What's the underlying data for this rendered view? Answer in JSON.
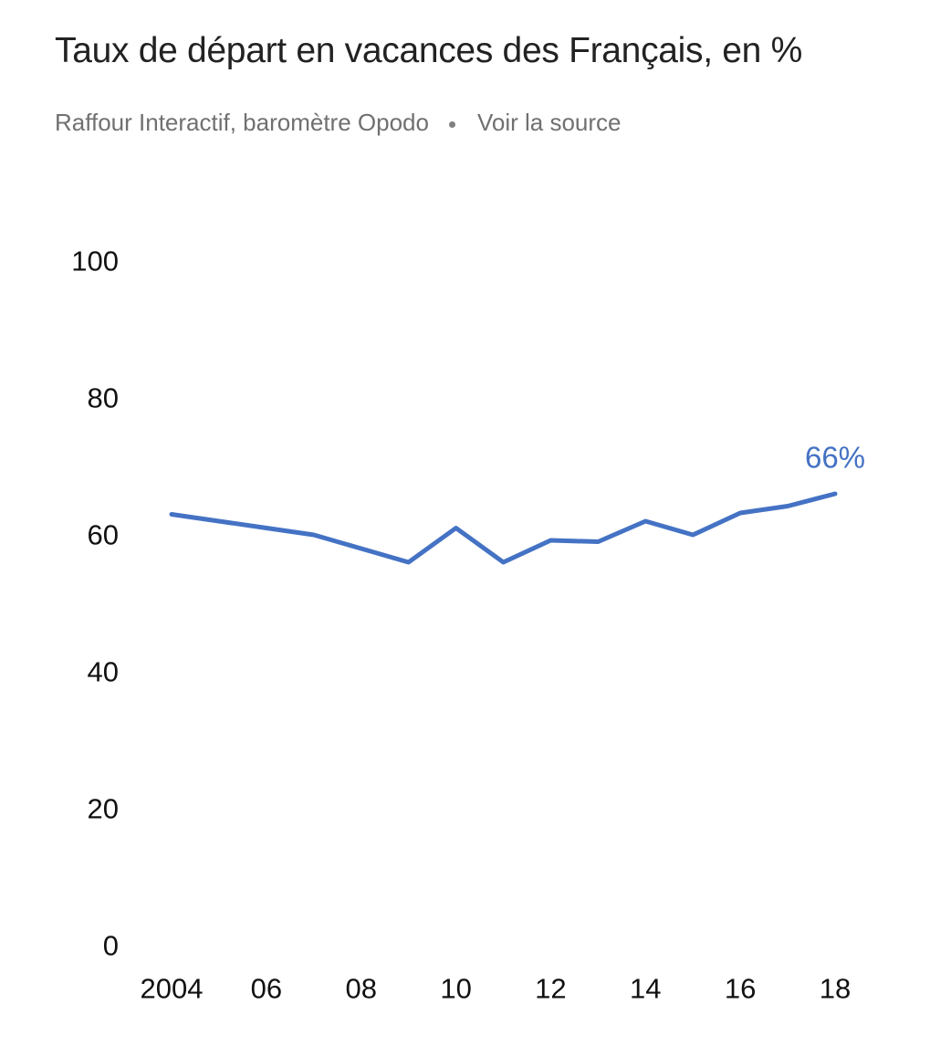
{
  "header": {
    "title": "Taux de départ en vacances des Français, en %",
    "source": "Raffour Interactif, baromètre Opodo",
    "source_link": "Voir la source"
  },
  "chart_data": {
    "type": "line",
    "x": [
      2004,
      2005,
      2006,
      2007,
      2008,
      2009,
      2010,
      2011,
      2012,
      2013,
      2014,
      2015,
      2016,
      2017,
      2018
    ],
    "series": [
      {
        "values": [
          63,
          62,
          61,
          60,
          58,
          56,
          61,
          56,
          59.2,
          59,
          62,
          60,
          63.2,
          64.2,
          66
        ],
        "color": "#4472C4"
      }
    ],
    "xtick_values": [
      2004,
      2006,
      2008,
      2010,
      2012,
      2014,
      2016,
      2018
    ],
    "xtick_labels": [
      "2004",
      "06",
      "08",
      "10",
      "12",
      "14",
      "16",
      "18"
    ],
    "ytick_values": [
      0,
      20,
      40,
      60,
      80,
      100
    ],
    "ytick_labels": [
      "0",
      "20",
      "40",
      "60",
      "80",
      "100"
    ],
    "xlim": [
      2004,
      2018
    ],
    "ylim": [
      0,
      100
    ],
    "end_label": "66%",
    "grid": false,
    "xlabel": "",
    "ylabel": ""
  }
}
